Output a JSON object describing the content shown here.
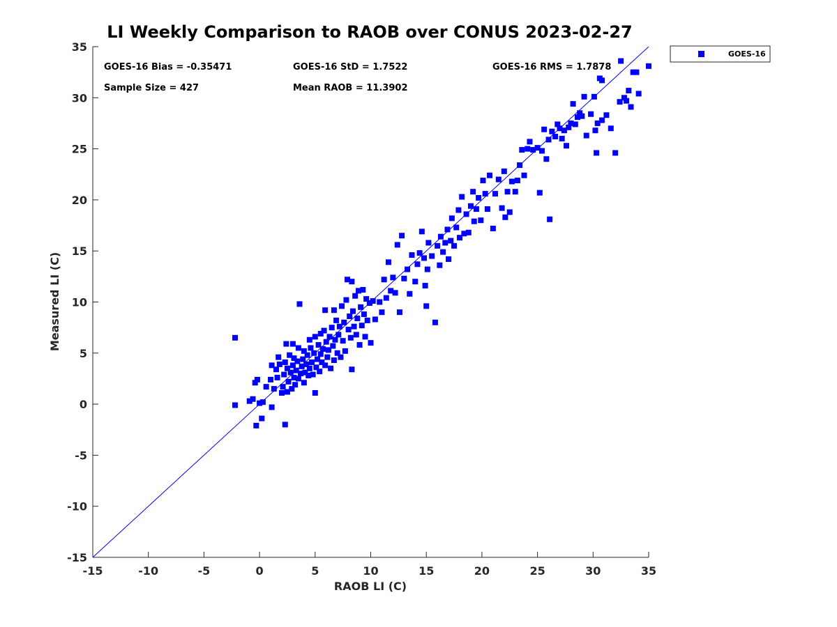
{
  "colors": {
    "series": "#0000ff",
    "refline": "#0000ff",
    "axis": "#262626"
  },
  "chart_data": {
    "type": "scatter",
    "title": "LI Weekly Comparison to RAOB over CONUS 2023-02-27",
    "xlabel": "RAOB LI (C)",
    "ylabel": "Measured LI (C)",
    "xlim": [
      -15,
      35
    ],
    "ylim": [
      -15,
      35
    ],
    "xticks": [
      "-15",
      "-10",
      "-5",
      "0",
      "5",
      "10",
      "15",
      "20",
      "25",
      "30",
      "35"
    ],
    "yticks": [
      "-15",
      "-10",
      "-5",
      "0",
      "5",
      "10",
      "15",
      "20",
      "25",
      "30",
      "35"
    ],
    "grid": false,
    "legend": {
      "entries": [
        "GOES-16"
      ],
      "placement": "outside-top-right"
    },
    "reference_line": {
      "from": [
        -15,
        -15
      ],
      "to": [
        35,
        35
      ]
    },
    "annotations": {
      "bias": "GOES-16 Bias = -0.35471",
      "std": "GOES-16 StD = 1.7522",
      "rms": "GOES-16 RMS = 1.7878",
      "sample_size": "Sample Size = 427",
      "mean_raob": "Mean RAOB = 11.3902"
    },
    "series": [
      {
        "name": "GOES-16",
        "points": [
          [
            -2.2,
            6.5
          ],
          [
            -2.2,
            -0.1
          ],
          [
            -0.9,
            0.3
          ],
          [
            -0.6,
            0.5
          ],
          [
            -0.4,
            2.1
          ],
          [
            -0.2,
            2.4
          ],
          [
            -0.3,
            -2.1
          ],
          [
            0.0,
            0.1
          ],
          [
            0.2,
            -1.4
          ],
          [
            0.3,
            0.2
          ],
          [
            0.6,
            1.7
          ],
          [
            1.0,
            2.4
          ],
          [
            1.1,
            -0.3
          ],
          [
            1.1,
            3.8
          ],
          [
            1.3,
            1.5
          ],
          [
            1.5,
            3.4
          ],
          [
            1.6,
            2.6
          ],
          [
            1.7,
            4.6
          ],
          [
            1.8,
            3.9
          ],
          [
            2.0,
            1.1
          ],
          [
            2.1,
            1.7
          ],
          [
            2.2,
            2.9
          ],
          [
            2.3,
            -2.0
          ],
          [
            2.3,
            4.1
          ],
          [
            2.4,
            5.9
          ],
          [
            2.5,
            3.5
          ],
          [
            2.5,
            1.2
          ],
          [
            2.6,
            2.2
          ],
          [
            2.7,
            4.8
          ],
          [
            2.8,
            3.1
          ],
          [
            2.9,
            1.5
          ],
          [
            3.0,
            5.9
          ],
          [
            3.0,
            3.8
          ],
          [
            3.1,
            2.6
          ],
          [
            3.1,
            4.5
          ],
          [
            3.2,
            1.9
          ],
          [
            3.3,
            3.3
          ],
          [
            3.4,
            4.2
          ],
          [
            3.5,
            2.5
          ],
          [
            3.5,
            5.5
          ],
          [
            3.6,
            9.8
          ],
          [
            3.7,
            3.0
          ],
          [
            3.8,
            3.7
          ],
          [
            3.9,
            4.4
          ],
          [
            4.0,
            2.1
          ],
          [
            4.0,
            5.2
          ],
          [
            4.1,
            3.1
          ],
          [
            4.2,
            3.9
          ],
          [
            4.3,
            4.8
          ],
          [
            4.4,
            2.8
          ],
          [
            4.5,
            6.3
          ],
          [
            4.5,
            3.5
          ],
          [
            4.6,
            5.5
          ],
          [
            4.7,
            4.1
          ],
          [
            4.8,
            2.9
          ],
          [
            4.9,
            5.0
          ],
          [
            5.0,
            6.6
          ],
          [
            5.0,
            1.1
          ],
          [
            5.1,
            3.6
          ],
          [
            5.2,
            4.4
          ],
          [
            5.3,
            5.8
          ],
          [
            5.4,
            3.2
          ],
          [
            5.5,
            6.9
          ],
          [
            5.5,
            4.9
          ],
          [
            5.6,
            4.1
          ],
          [
            5.7,
            5.4
          ],
          [
            5.8,
            7.2
          ],
          [
            5.9,
            3.8
          ],
          [
            5.9,
            9.2
          ],
          [
            6.0,
            6.1
          ],
          [
            6.1,
            4.6
          ],
          [
            6.2,
            5.3
          ],
          [
            6.3,
            6.6
          ],
          [
            6.4,
            3.5
          ],
          [
            6.5,
            7.5
          ],
          [
            6.6,
            5.7
          ],
          [
            6.7,
            9.2
          ],
          [
            6.7,
            4.3
          ],
          [
            6.8,
            6.3
          ],
          [
            6.9,
            8.2
          ],
          [
            7.0,
            5.0
          ],
          [
            7.1,
            6.8
          ],
          [
            7.2,
            7.6
          ],
          [
            7.3,
            4.6
          ],
          [
            7.4,
            9.6
          ],
          [
            7.5,
            6.2
          ],
          [
            7.6,
            8.0
          ],
          [
            7.7,
            5.2
          ],
          [
            7.8,
            10.2
          ],
          [
            7.9,
            12.2
          ],
          [
            8.0,
            7.3
          ],
          [
            8.1,
            8.6
          ],
          [
            8.2,
            6.5
          ],
          [
            8.3,
            3.4
          ],
          [
            8.3,
            12.0
          ],
          [
            8.4,
            9.1
          ],
          [
            8.5,
            7.6
          ],
          [
            8.6,
            10.6
          ],
          [
            8.7,
            6.8
          ],
          [
            8.8,
            8.4
          ],
          [
            8.9,
            11.1
          ],
          [
            9.0,
            5.8
          ],
          [
            9.1,
            9.5
          ],
          [
            9.2,
            7.7
          ],
          [
            9.3,
            11.2
          ],
          [
            9.4,
            8.8
          ],
          [
            9.5,
            6.6
          ],
          [
            9.6,
            10.3
          ],
          [
            9.7,
            8.2
          ],
          [
            9.9,
            9.9
          ],
          [
            10.0,
            6.0
          ],
          [
            10.2,
            10.1
          ],
          [
            10.4,
            8.3
          ],
          [
            10.8,
            10.0
          ],
          [
            11.0,
            9.0
          ],
          [
            11.2,
            12.2
          ],
          [
            11.4,
            10.4
          ],
          [
            11.6,
            13.9
          ],
          [
            11.8,
            11.1
          ],
          [
            12.0,
            12.4
          ],
          [
            12.2,
            10.9
          ],
          [
            12.4,
            15.6
          ],
          [
            12.6,
            9.0
          ],
          [
            12.8,
            16.5
          ],
          [
            13.0,
            12.3
          ],
          [
            13.3,
            13.2
          ],
          [
            13.5,
            10.8
          ],
          [
            13.7,
            14.6
          ],
          [
            14.0,
            12.0
          ],
          [
            14.2,
            13.7
          ],
          [
            14.4,
            14.8
          ],
          [
            14.6,
            16.9
          ],
          [
            14.8,
            14.3
          ],
          [
            14.9,
            11.6
          ],
          [
            15.0,
            9.6
          ],
          [
            15.1,
            13.2
          ],
          [
            15.2,
            15.8
          ],
          [
            15.5,
            14.5
          ],
          [
            15.8,
            8.0
          ],
          [
            16.0,
            15.5
          ],
          [
            16.2,
            13.6
          ],
          [
            16.3,
            16.4
          ],
          [
            16.5,
            14.9
          ],
          [
            16.7,
            15.8
          ],
          [
            16.9,
            17.1
          ],
          [
            17.0,
            14.2
          ],
          [
            17.2,
            16.0
          ],
          [
            17.3,
            18.2
          ],
          [
            17.5,
            15.5
          ],
          [
            17.7,
            17.3
          ],
          [
            17.9,
            19.0
          ],
          [
            18.0,
            16.3
          ],
          [
            18.2,
            20.3
          ],
          [
            18.4,
            16.7
          ],
          [
            18.6,
            18.6
          ],
          [
            18.8,
            16.8
          ],
          [
            19.0,
            19.4
          ],
          [
            19.2,
            20.8
          ],
          [
            19.3,
            17.9
          ],
          [
            19.5,
            19.1
          ],
          [
            19.7,
            20.2
          ],
          [
            19.9,
            18.0
          ],
          [
            20.1,
            21.9
          ],
          [
            20.3,
            20.6
          ],
          [
            20.5,
            19.1
          ],
          [
            20.7,
            22.4
          ],
          [
            21.0,
            17.2
          ],
          [
            21.2,
            20.6
          ],
          [
            21.5,
            22.0
          ],
          [
            21.8,
            19.2
          ],
          [
            22.0,
            22.8
          ],
          [
            22.1,
            18.3
          ],
          [
            22.3,
            20.8
          ],
          [
            22.5,
            18.8
          ],
          [
            22.7,
            21.8
          ],
          [
            23.0,
            20.8
          ],
          [
            23.2,
            21.9
          ],
          [
            23.4,
            23.4
          ],
          [
            23.6,
            24.9
          ],
          [
            23.8,
            22.4
          ],
          [
            24.1,
            25.0
          ],
          [
            24.3,
            25.7
          ],
          [
            24.6,
            24.9
          ],
          [
            25.0,
            25.1
          ],
          [
            25.2,
            20.7
          ],
          [
            25.4,
            24.8
          ],
          [
            25.6,
            26.9
          ],
          [
            25.8,
            24.0
          ],
          [
            26.0,
            25.9
          ],
          [
            26.1,
            18.1
          ],
          [
            26.3,
            26.7
          ],
          [
            26.6,
            26.2
          ],
          [
            26.8,
            27.4
          ],
          [
            27.0,
            27.0
          ],
          [
            27.2,
            26.0
          ],
          [
            27.4,
            26.8
          ],
          [
            27.6,
            25.3
          ],
          [
            27.8,
            27.1
          ],
          [
            28.0,
            27.5
          ],
          [
            28.2,
            29.4
          ],
          [
            28.4,
            27.4
          ],
          [
            28.6,
            28.1
          ],
          [
            28.8,
            28.5
          ],
          [
            29.0,
            28.2
          ],
          [
            29.2,
            30.1
          ],
          [
            29.4,
            26.3
          ],
          [
            29.8,
            28.4
          ],
          [
            30.1,
            30.1
          ],
          [
            30.2,
            26.8
          ],
          [
            30.3,
            24.6
          ],
          [
            30.4,
            27.5
          ],
          [
            30.6,
            31.9
          ],
          [
            30.8,
            27.8
          ],
          [
            31.2,
            28.3
          ],
          [
            31.6,
            27.0
          ],
          [
            32.0,
            24.6
          ],
          [
            32.4,
            29.6
          ],
          [
            32.5,
            33.6
          ],
          [
            32.8,
            30.0
          ],
          [
            33.0,
            29.7
          ],
          [
            33.2,
            30.7
          ],
          [
            33.4,
            29.1
          ],
          [
            33.6,
            32.5
          ],
          [
            33.9,
            32.5
          ],
          [
            34.1,
            30.4
          ],
          [
            35.0,
            33.1
          ],
          [
            30.8,
            31.7
          ]
        ]
      }
    ]
  }
}
